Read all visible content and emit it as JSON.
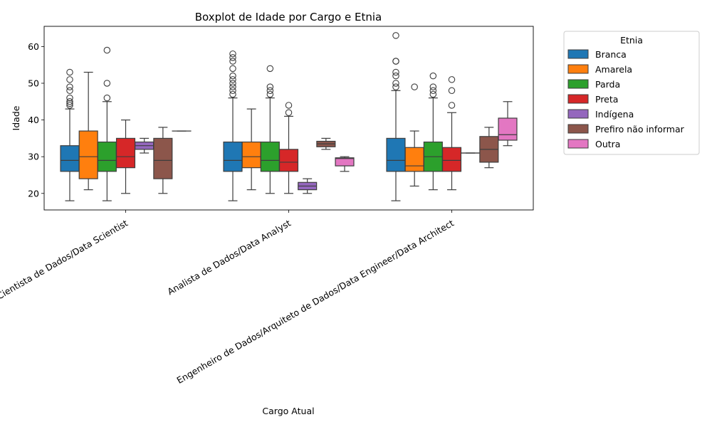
{
  "chart_data": {
    "type": "boxplot",
    "title": "Boxplot de Idade por Cargo e Etnia",
    "xlabel": "Cargo Atual",
    "ylabel": "Idade",
    "ylim": [
      15.5,
      65.5
    ],
    "yticks": [
      20,
      30,
      40,
      50,
      60
    ],
    "categories": [
      "Cientista de Dados/Data Scientist",
      "Analista de Dados/Data Analyst",
      "Engenheiro de Dados/Arquiteto de Dados/Data Engineer/Data Architect"
    ],
    "legend": {
      "title": "Etnia",
      "placement": "outside-right"
    },
    "series": [
      {
        "name": "Branca",
        "color": "#1f77b4",
        "boxes": [
          {
            "whislo": 18,
            "q1": 26,
            "med": 29,
            "q3": 33,
            "whishi": 43,
            "fliers": [
              44,
              44.5,
              45,
              46,
              48,
              49,
              51,
              53
            ]
          },
          {
            "whislo": 18,
            "q1": 26,
            "med": 29,
            "q3": 34,
            "whishi": 46,
            "fliers": [
              47,
              48,
              49,
              50,
              51,
              52,
              54,
              56,
              57,
              58
            ]
          },
          {
            "whislo": 18,
            "q1": 26,
            "med": 29,
            "q3": 35,
            "whishi": 48,
            "fliers": [
              49,
              50,
              52,
              53,
              56,
              56,
              63
            ]
          }
        ]
      },
      {
        "name": "Amarela",
        "color": "#ff7f0e",
        "boxes": [
          {
            "whislo": 21,
            "q1": 24,
            "med": 30,
            "q3": 37,
            "whishi": 53,
            "fliers": []
          },
          {
            "whislo": 21,
            "q1": 27,
            "med": 30,
            "q3": 34,
            "whishi": 43,
            "fliers": []
          },
          {
            "whislo": 22,
            "q1": 26,
            "med": 27.5,
            "q3": 32.5,
            "whishi": 37,
            "fliers": [
              49
            ]
          }
        ]
      },
      {
        "name": "Parda",
        "color": "#2ca02c",
        "boxes": [
          {
            "whislo": 18,
            "q1": 26,
            "med": 29,
            "q3": 34,
            "whishi": 45,
            "fliers": [
              46,
              50,
              59
            ]
          },
          {
            "whislo": 20,
            "q1": 26,
            "med": 29,
            "q3": 34,
            "whishi": 46,
            "fliers": [
              47,
              48,
              49,
              54
            ]
          },
          {
            "whislo": 21,
            "q1": 26,
            "med": 30,
            "q3": 34,
            "whishi": 46,
            "fliers": [
              47,
              48,
              49,
              52
            ]
          }
        ]
      },
      {
        "name": "Preta",
        "color": "#d62728",
        "boxes": [
          {
            "whislo": 20,
            "q1": 27,
            "med": 30,
            "q3": 35,
            "whishi": 40,
            "fliers": []
          },
          {
            "whislo": 20,
            "q1": 26,
            "med": 28.5,
            "q3": 32,
            "whishi": 41,
            "fliers": [
              42,
              44
            ]
          },
          {
            "whislo": 21,
            "q1": 26,
            "med": 29,
            "q3": 32.5,
            "whishi": 42,
            "fliers": [
              44,
              48,
              51
            ]
          }
        ]
      },
      {
        "name": "Indígena",
        "color": "#9467bd",
        "boxes": [
          {
            "whislo": 31,
            "q1": 32,
            "med": 33,
            "q3": 34,
            "whishi": 35,
            "fliers": []
          },
          {
            "whislo": 20,
            "q1": 21,
            "med": 22,
            "q3": 23,
            "whishi": 24,
            "fliers": []
          },
          {
            "whislo": 31,
            "q1": 31,
            "med": 31,
            "q3": 31,
            "whishi": 31,
            "fliers": []
          }
        ]
      },
      {
        "name": "Prefiro não informar",
        "color": "#8c564b",
        "boxes": [
          {
            "whislo": 20,
            "q1": 24,
            "med": 29,
            "q3": 35,
            "whishi": 38,
            "fliers": []
          },
          {
            "whislo": 32,
            "q1": 32.7,
            "med": 33.5,
            "q3": 34.2,
            "whishi": 35,
            "fliers": []
          },
          {
            "whislo": 27,
            "q1": 28.5,
            "med": 32,
            "q3": 35.5,
            "whishi": 38,
            "fliers": []
          }
        ]
      },
      {
        "name": "Outra",
        "color": "#e377c2",
        "boxes": [
          {
            "whislo": 37,
            "q1": 37,
            "med": 37,
            "q3": 37,
            "whishi": 37,
            "fliers": []
          },
          {
            "whislo": 26,
            "q1": 27.5,
            "med": 29.5,
            "q3": 29.7,
            "whishi": 30,
            "fliers": []
          },
          {
            "whislo": 33,
            "q1": 34.5,
            "med": 36,
            "q3": 40.5,
            "whishi": 45,
            "fliers": []
          }
        ]
      }
    ]
  }
}
